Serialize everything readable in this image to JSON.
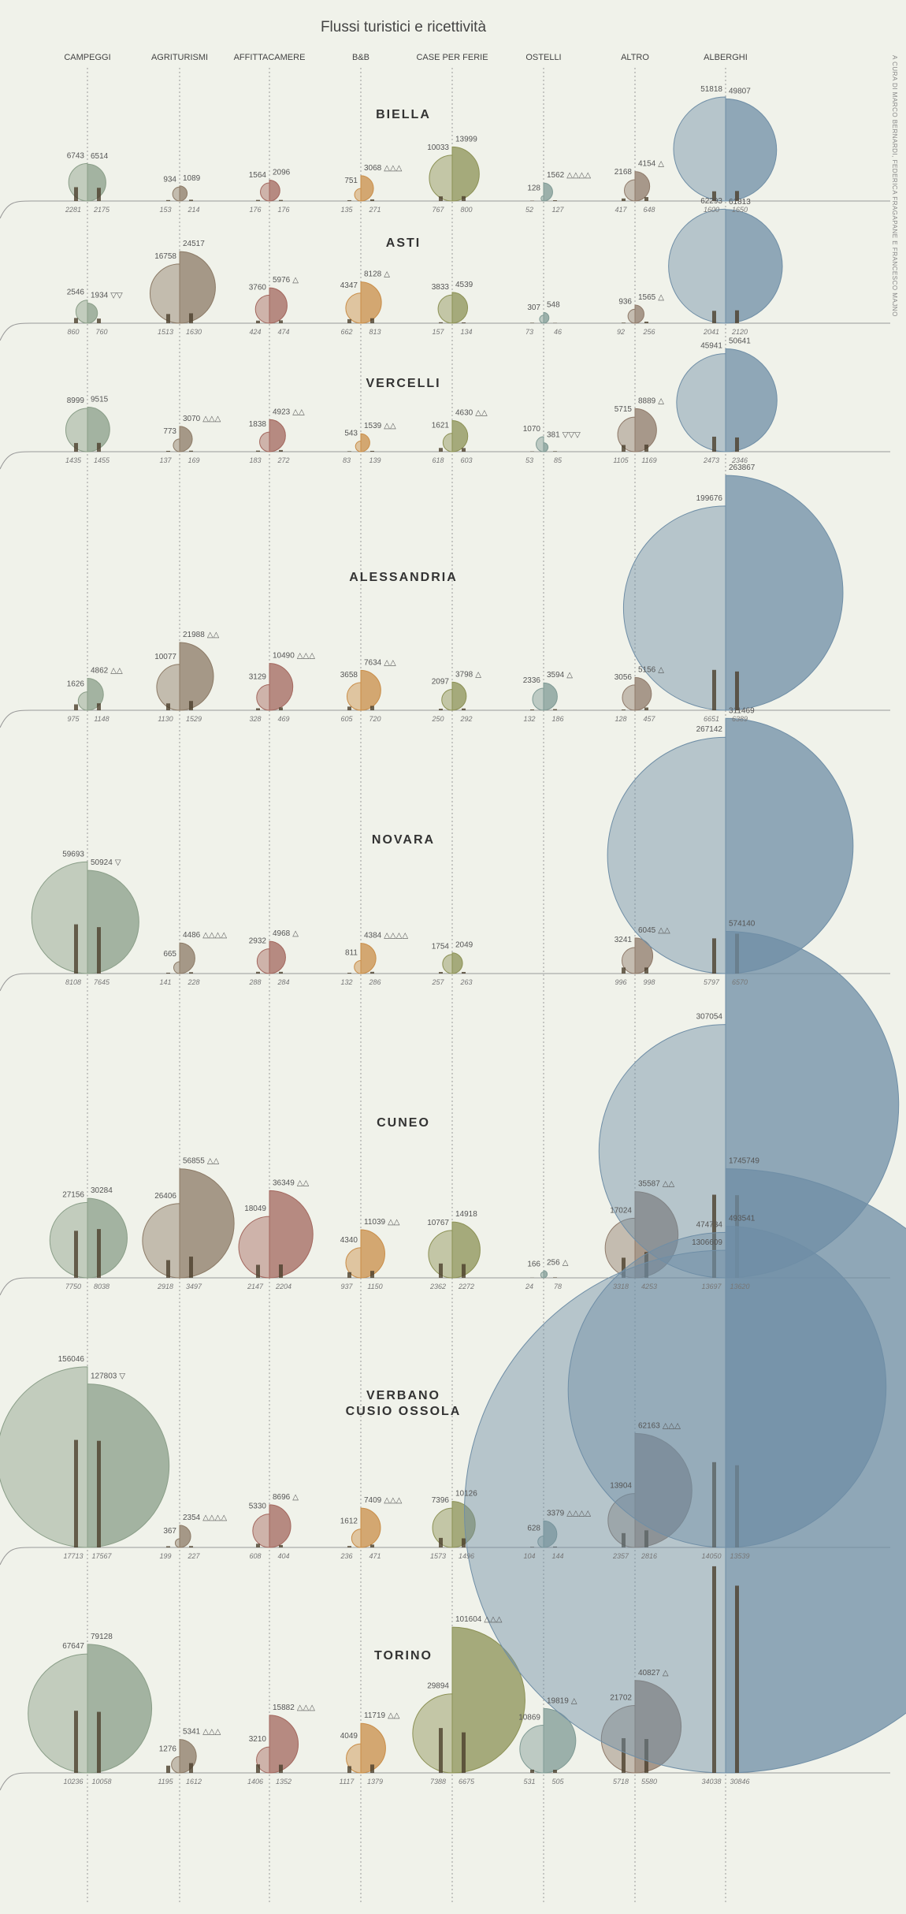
{
  "chart_data": {
    "type": "bubble-grid",
    "title": "Flussi turistici e ricettività",
    "credit": "A CURA DI MARCO BERNARDI, FEDERICA FRAGAPANE E FRANCESCO MAJNO",
    "columns": [
      {
        "label": "CAMPEGGI",
        "color": "#8a9e88"
      },
      {
        "label": "AGRITURISMI",
        "color": "#8c7a66"
      },
      {
        "label": "AFFITTACAMERE",
        "color": "#a3675e"
      },
      {
        "label": "B&B",
        "color": "#c98d48"
      },
      {
        "label": "CASE PER FERIE",
        "color": "#8c9155"
      },
      {
        "label": "OSTELLI",
        "color": "#7f9a94"
      },
      {
        "label": "ALTRO",
        "color": "#8f7a6a"
      },
      {
        "label": "ALBERGHI",
        "color": "#6f8ea6"
      }
    ],
    "rows": [
      {
        "name": [
          "BIELLA"
        ],
        "cells": [
          {
            "values": [
              6743,
              6514
            ],
            "beds": [
              2281,
              2175
            ]
          },
          {
            "values": [
              934,
              1089
            ],
            "beds": [
              153,
              214
            ]
          },
          {
            "values": [
              1564,
              2096
            ],
            "beds": [
              176,
              176
            ]
          },
          {
            "values": [
              751,
              3068
            ],
            "beds": [
              135,
              271
            ],
            "note": "△△△"
          },
          {
            "values": [
              10033,
              13999
            ],
            "beds": [
              767,
              800
            ]
          },
          {
            "values": [
              128,
              1562
            ],
            "beds": [
              52,
              127
            ],
            "note": "△△△△"
          },
          {
            "values": [
              2168,
              4154
            ],
            "beds": [
              417,
              648
            ],
            "note": "△"
          },
          {
            "values": [
              51818,
              49807
            ],
            "beds": [
              1600,
              1650
            ]
          }
        ]
      },
      {
        "name": [
          "ASTI"
        ],
        "cells": [
          {
            "values": [
              2546,
              1934
            ],
            "beds": [
              860,
              760
            ],
            "note": "▽▽"
          },
          {
            "values": [
              16758,
              24517
            ],
            "beds": [
              1513,
              1630
            ]
          },
          {
            "values": [
              3760,
              5976
            ],
            "beds": [
              424,
              474
            ],
            "note": "△"
          },
          {
            "values": [
              4347,
              8128
            ],
            "beds": [
              662,
              813
            ],
            "note": "△"
          },
          {
            "values": [
              3833,
              4539
            ],
            "beds": [
              157,
              134
            ]
          },
          {
            "values": [
              307,
              548
            ],
            "beds": [
              73,
              46
            ]
          },
          {
            "values": [
              936,
              1565
            ],
            "beds": [
              92,
              256
            ],
            "note": "△"
          },
          {
            "values": [
              62293,
              61813
            ],
            "beds": [
              2041,
              2120
            ]
          }
        ]
      },
      {
        "name": [
          "VERCELLI"
        ],
        "cells": [
          {
            "values": [
              8999,
              9515
            ],
            "beds": [
              1435,
              1455
            ]
          },
          {
            "values": [
              773,
              3070
            ],
            "beds": [
              137,
              169
            ],
            "note": "△△△"
          },
          {
            "values": [
              1838,
              4923
            ],
            "beds": [
              183,
              272
            ],
            "note": "△△"
          },
          {
            "values": [
              543,
              1539
            ],
            "beds": [
              83,
              139
            ],
            "note": "△△"
          },
          {
            "values": [
              1621,
              4630
            ],
            "beds": [
              618,
              603
            ],
            "note": "△△"
          },
          {
            "values": [
              1070,
              381
            ],
            "beds": [
              53,
              85
            ],
            "note": "▽▽▽"
          },
          {
            "values": [
              5715,
              8889
            ],
            "beds": [
              1105,
              1169
            ],
            "note": "△"
          },
          {
            "values": [
              45941,
              50641
            ],
            "beds": [
              2473,
              2346
            ]
          }
        ]
      },
      {
        "name": [
          "ALESSANDRIA"
        ],
        "cells": [
          {
            "values": [
              1626,
              4862
            ],
            "beds": [
              975,
              1148
            ],
            "note": "△△"
          },
          {
            "values": [
              10077,
              21988
            ],
            "beds": [
              1130,
              1529
            ],
            "note": "△△"
          },
          {
            "values": [
              3129,
              10490
            ],
            "beds": [
              328,
              469
            ],
            "note": "△△△"
          },
          {
            "values": [
              3658,
              7634
            ],
            "beds": [
              605,
              720
            ],
            "note": "△△"
          },
          {
            "values": [
              2097,
              3798
            ],
            "beds": [
              250,
              292
            ],
            "note": "△"
          },
          {
            "values": [
              2336,
              3594
            ],
            "beds": [
              132,
              186
            ],
            "note": "△"
          },
          {
            "values": [
              3056,
              5156
            ],
            "beds": [
              128,
              457
            ],
            "note": "△"
          },
          {
            "values": [
              199676,
              263867
            ],
            "beds": [
              6651,
              6389
            ]
          }
        ]
      },
      {
        "name": [
          "NOVARA"
        ],
        "cells": [
          {
            "values": [
              59693,
              50924
            ],
            "beds": [
              8108,
              7645
            ],
            "note": "▽"
          },
          {
            "values": [
              665,
              4486
            ],
            "beds": [
              141,
              228
            ],
            "note": "△△△△"
          },
          {
            "values": [
              2932,
              4968
            ],
            "beds": [
              288,
              284
            ],
            "note": "△"
          },
          {
            "values": [
              811,
              4384
            ],
            "beds": [
              132,
              286
            ],
            "note": "△△△△"
          },
          {
            "values": [
              1754,
              2049
            ],
            "beds": [
              257,
              263
            ]
          },
          null,
          {
            "values": [
              3241,
              6045
            ],
            "beds": [
              996,
              998
            ],
            "note": "△△"
          },
          {
            "values": [
              267142,
              311469
            ],
            "beds": [
              5797,
              6570
            ]
          }
        ]
      },
      {
        "name": [
          "CUNEO"
        ],
        "cells": [
          {
            "values": [
              27156,
              30284
            ],
            "beds": [
              7750,
              8038
            ]
          },
          {
            "values": [
              26406,
              56855
            ],
            "beds": [
              2918,
              3497
            ],
            "note": "△△"
          },
          {
            "values": [
              18049,
              36349
            ],
            "beds": [
              2147,
              2204
            ],
            "note": "△△"
          },
          {
            "values": [
              4340,
              11039
            ],
            "beds": [
              937,
              1150
            ],
            "note": "△△"
          },
          {
            "values": [
              10767,
              14918
            ],
            "beds": [
              2362,
              2272
            ]
          },
          {
            "values": [
              166,
              256
            ],
            "beds": [
              24,
              78
            ],
            "note": "△"
          },
          {
            "values": [
              17024,
              35587
            ],
            "beds": [
              3318,
              4253
            ],
            "note": "△△"
          },
          {
            "values": [
              307054,
              574140
            ],
            "beds": [
              13697,
              13620
            ]
          }
        ]
      },
      {
        "name": [
          "VERBANO",
          "CUSIO OSSOLA"
        ],
        "cells": [
          {
            "values": [
              156046,
              127803
            ],
            "beds": [
              17713,
              17567
            ],
            "note": "▽"
          },
          {
            "values": [
              367,
              2354
            ],
            "beds": [
              199,
              227
            ],
            "note": "△△△△"
          },
          {
            "values": [
              5330,
              8696
            ],
            "beds": [
              608,
              404
            ],
            "note": "△"
          },
          {
            "values": [
              1612,
              7409
            ],
            "beds": [
              236,
              471
            ],
            "note": "△△△"
          },
          {
            "values": [
              7396,
              10126
            ],
            "beds": [
              1573,
              1496
            ]
          },
          {
            "values": [
              628,
              3379
            ],
            "beds": [
              104,
              144
            ],
            "note": "△△△△"
          },
          {
            "values": [
              13904,
              62163
            ],
            "beds": [
              2357,
              2816
            ],
            "note": "△△△"
          },
          {
            "values": [
              474734,
              493541
            ],
            "beds": [
              14050,
              13539
            ]
          }
        ]
      },
      {
        "name": [
          "TORINO"
        ],
        "cells": [
          {
            "values": [
              67647,
              79128
            ],
            "beds": [
              10236,
              10058
            ]
          },
          {
            "values": [
              1276,
              5341
            ],
            "beds": [
              1195,
              1612
            ],
            "note": "△△△"
          },
          {
            "values": [
              3210,
              15882
            ],
            "beds": [
              1406,
              1352
            ],
            "note": "△△△"
          },
          {
            "values": [
              4049,
              11719
            ],
            "beds": [
              1117,
              1379
            ],
            "note": "△△"
          },
          {
            "values": [
              29894,
              101604
            ],
            "beds": [
              7388,
              6675
            ],
            "note": "△△△"
          },
          {
            "values": [
              10869,
              19819
            ],
            "beds": [
              531,
              505
            ],
            "note": "△"
          },
          {
            "values": [
              21702,
              40827
            ],
            "beds": [
              5718,
              5580
            ],
            "note": "△"
          },
          {
            "values": [
              1306609,
              1745749
            ],
            "beds": [
              34038,
              30846
            ]
          }
        ]
      }
    ]
  }
}
